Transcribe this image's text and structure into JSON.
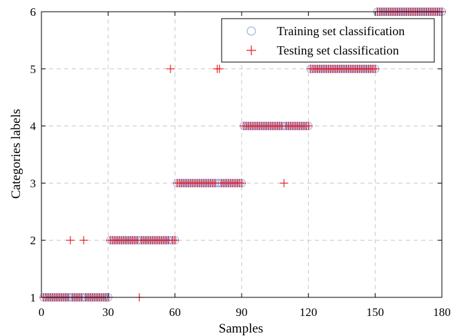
{
  "chart_data": {
    "type": "scatter",
    "xlabel": "Samples",
    "ylabel": "Categories labels",
    "xlim": [
      0,
      180
    ],
    "ylim": [
      1,
      6
    ],
    "xticks": [
      0,
      30,
      60,
      90,
      120,
      150,
      180
    ],
    "yticks": [
      1,
      2,
      3,
      4,
      5,
      6
    ],
    "grid": true,
    "legend_position": "top-right",
    "colors": {
      "training": "#8f9fd6",
      "testing": "#e8101a"
    },
    "series": [
      {
        "name": "Training set classification",
        "marker": "circle",
        "segments": [
          {
            "x_from": 1,
            "x_to": 30,
            "y": 1
          },
          {
            "x_from": 31,
            "x_to": 60,
            "y": 2
          },
          {
            "x_from": 61,
            "x_to": 90,
            "y": 3
          },
          {
            "x_from": 91,
            "x_to": 120,
            "y": 4
          },
          {
            "x_from": 121,
            "x_to": 150,
            "y": 5
          },
          {
            "x_from": 151,
            "x_to": 180,
            "y": 6
          }
        ]
      },
      {
        "name": "Testing set classification",
        "marker": "plus",
        "segments": [
          {
            "x_from": 1,
            "x_to": 30,
            "y": 1
          },
          {
            "x_from": 31,
            "x_to": 60,
            "y": 2
          },
          {
            "x_from": 61,
            "x_to": 90,
            "y": 3
          },
          {
            "x_from": 91,
            "x_to": 120,
            "y": 4
          },
          {
            "x_from": 121,
            "x_to": 150,
            "y": 5
          },
          {
            "x_from": 151,
            "x_to": 180,
            "y": 6
          }
        ],
        "overrides": [
          {
            "x": 13,
            "y": 2
          },
          {
            "x": 19,
            "y": 2
          },
          {
            "x": 44,
            "y": 1
          },
          {
            "x": 58,
            "y": 5
          },
          {
            "x": 79,
            "y": 5
          },
          {
            "x": 80,
            "y": 5
          },
          {
            "x": 109,
            "y": 3
          }
        ]
      }
    ]
  }
}
